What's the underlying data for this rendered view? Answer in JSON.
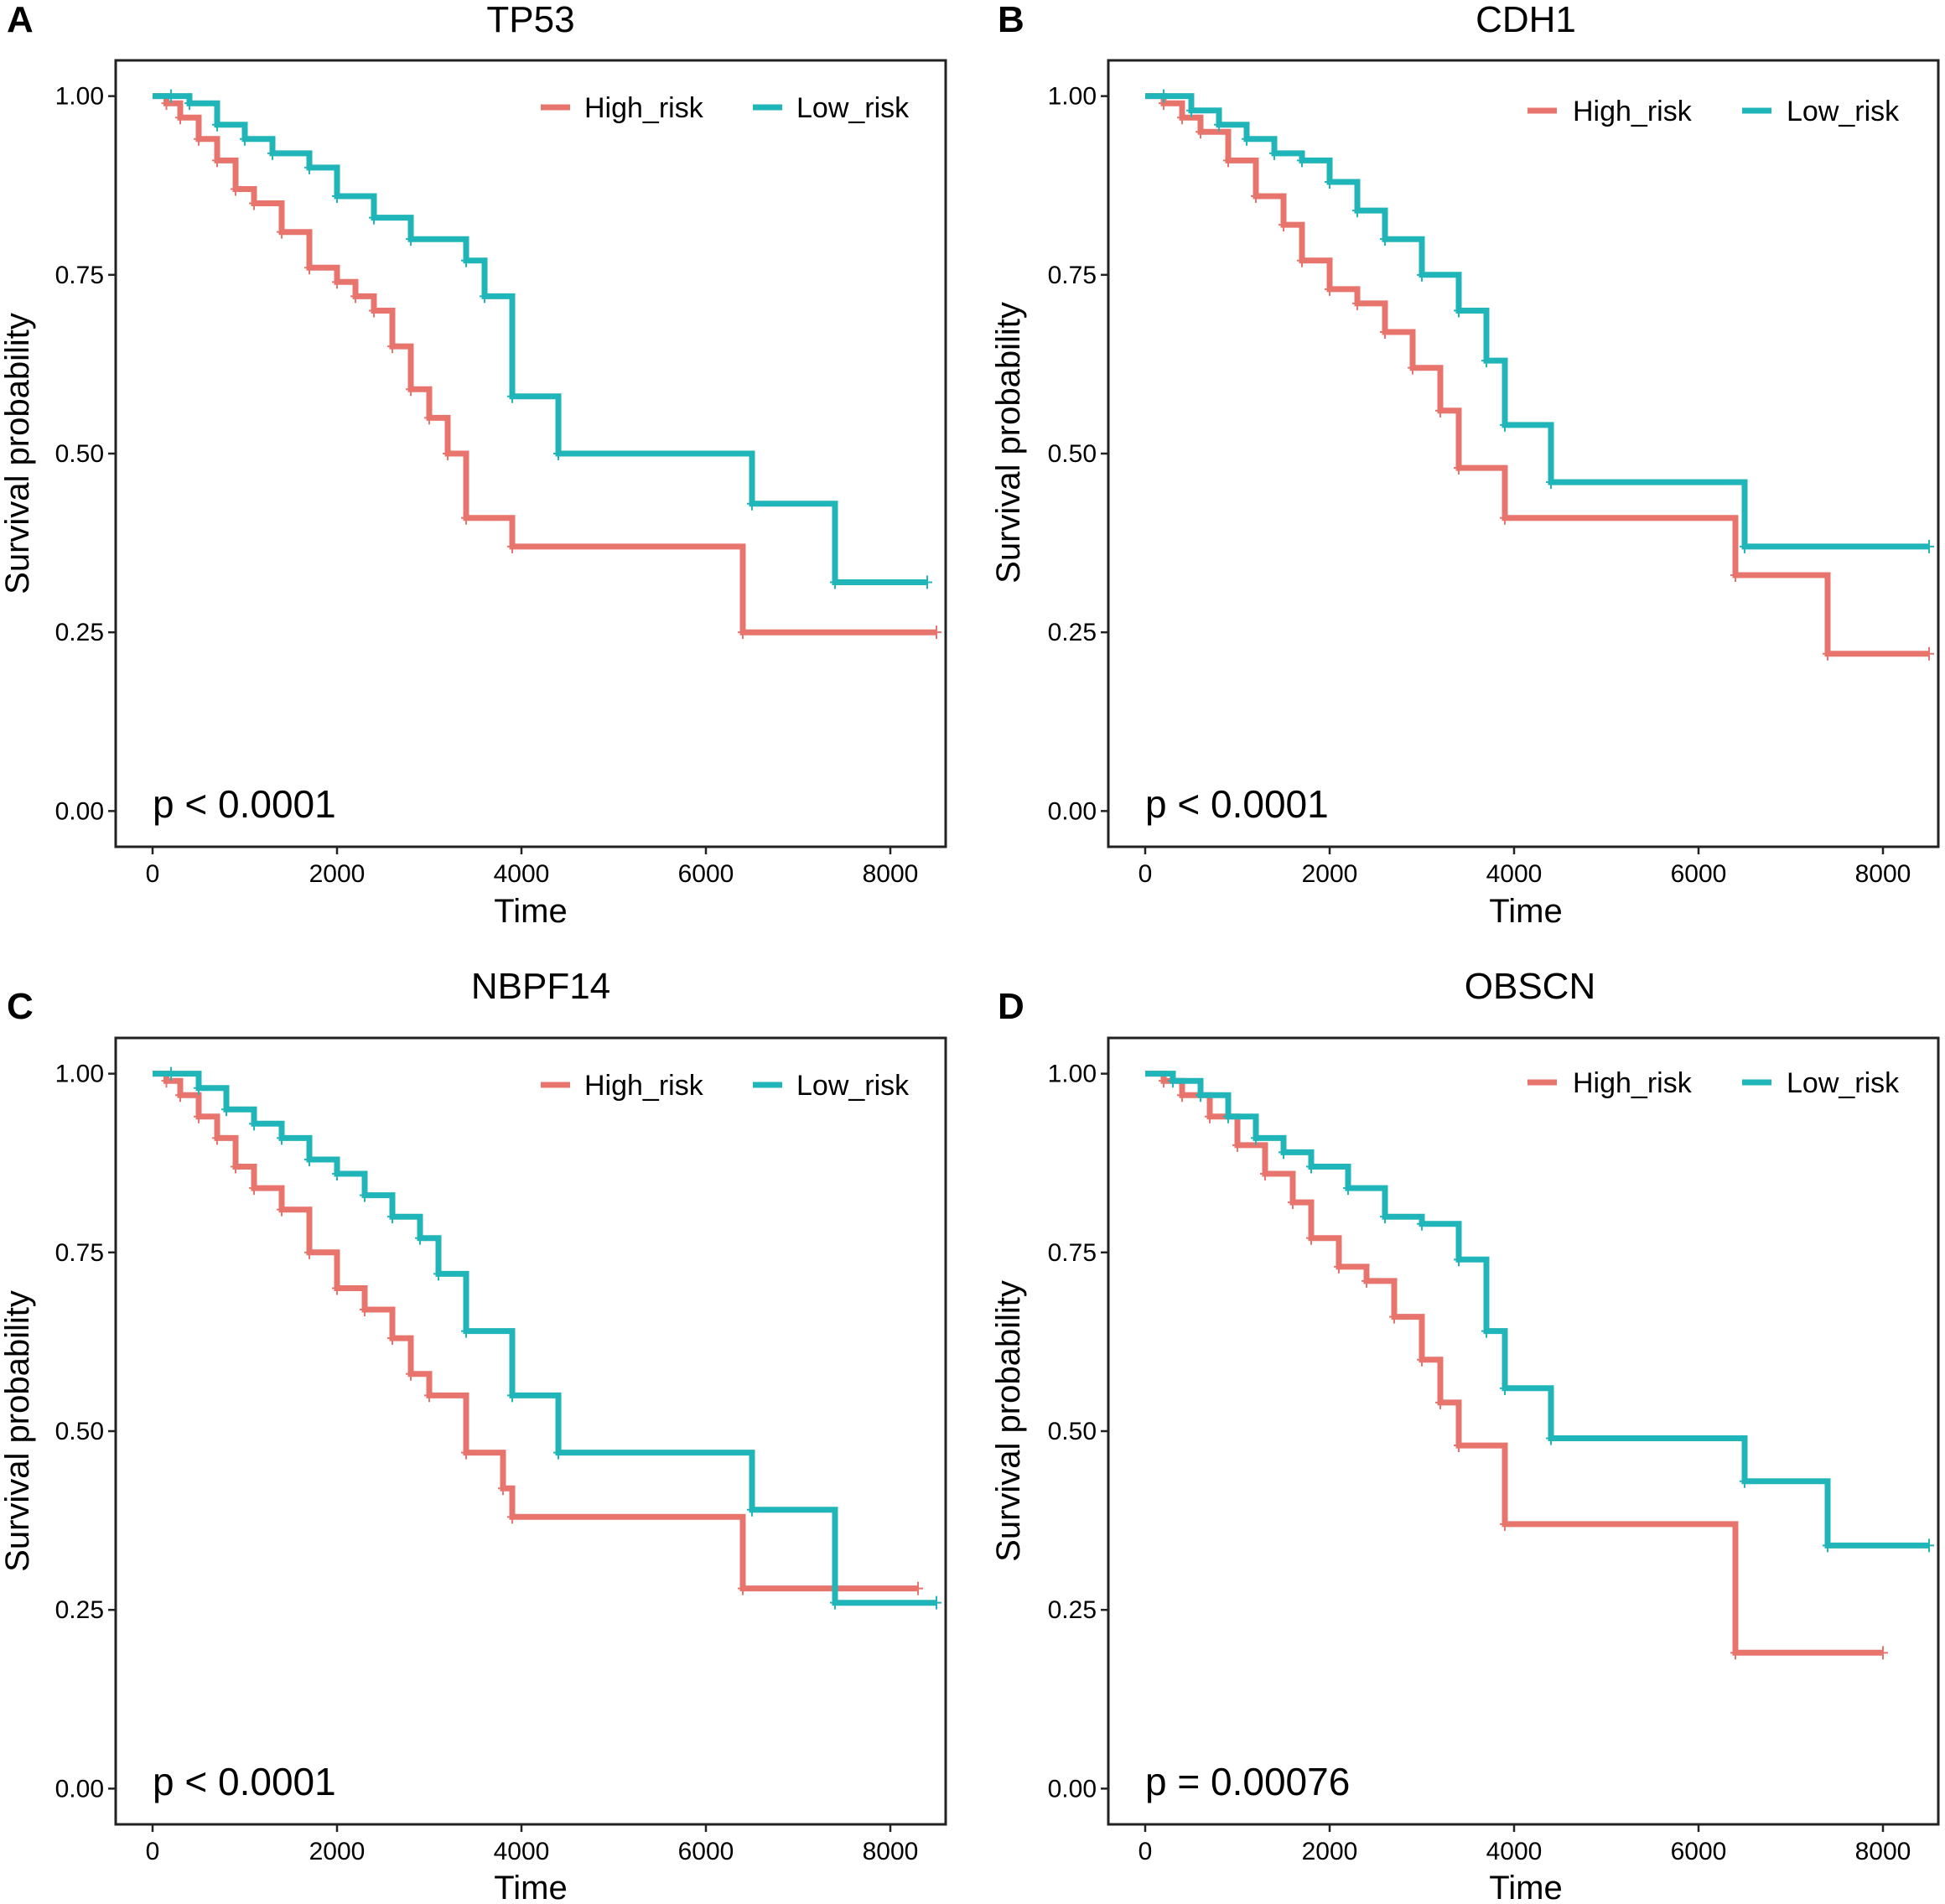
{
  "colors": {
    "high": "#E8756D",
    "low": "#20B5B8"
  },
  "chart_data": [
    {
      "panel": "A",
      "type": "line",
      "title": "TP53",
      "xlabel": "Time",
      "ylabel": "Survival probability",
      "xlim": [
        -400,
        8600
      ],
      "ylim": [
        -0.05,
        1.05
      ],
      "xticks": [
        "0",
        "2000",
        "4000",
        "6000",
        "8000"
      ],
      "yticks": [
        "0.00",
        "0.25",
        "0.50",
        "0.75",
        "1.00"
      ],
      "legend": [
        "High_risk",
        "Low_risk"
      ],
      "pvalue": "p < 0.0001",
      "series": [
        {
          "name": "High_risk",
          "x": [
            0,
            150,
            300,
            500,
            700,
            900,
            1100,
            1400,
            1700,
            2000,
            2200,
            2400,
            2600,
            2800,
            3000,
            3200,
            3400,
            3900,
            6400,
            8500
          ],
          "y": [
            1.0,
            0.99,
            0.97,
            0.94,
            0.91,
            0.87,
            0.85,
            0.81,
            0.76,
            0.74,
            0.72,
            0.7,
            0.65,
            0.59,
            0.55,
            0.5,
            0.41,
            0.37,
            0.25,
            0.25
          ]
        },
        {
          "name": "Low_risk",
          "x": [
            0,
            200,
            400,
            700,
            1000,
            1300,
            1700,
            2000,
            2400,
            2800,
            3400,
            3600,
            3900,
            4400,
            6500,
            7400,
            8400
          ],
          "y": [
            1.0,
            1.0,
            0.99,
            0.96,
            0.94,
            0.92,
            0.9,
            0.86,
            0.83,
            0.8,
            0.77,
            0.72,
            0.58,
            0.5,
            0.43,
            0.32,
            0.32
          ]
        }
      ]
    },
    {
      "panel": "B",
      "type": "line",
      "title": "CDH1",
      "xlabel": "Time",
      "ylabel": "Survival probability",
      "xlim": [
        -400,
        8600
      ],
      "ylim": [
        -0.05,
        1.05
      ],
      "xticks": [
        "0",
        "2000",
        "4000",
        "6000",
        "8000"
      ],
      "yticks": [
        "0.00",
        "0.25",
        "0.50",
        "0.75",
        "1.00"
      ],
      "legend": [
        "High_risk",
        "Low_risk"
      ],
      "pvalue": "p < 0.0001",
      "series": [
        {
          "name": "High_risk",
          "x": [
            0,
            200,
            400,
            600,
            900,
            1200,
            1500,
            1700,
            2000,
            2300,
            2600,
            2900,
            3200,
            3400,
            3900,
            6400,
            7400,
            8500
          ],
          "y": [
            1.0,
            0.99,
            0.97,
            0.95,
            0.91,
            0.86,
            0.82,
            0.77,
            0.73,
            0.71,
            0.67,
            0.62,
            0.56,
            0.48,
            0.41,
            0.33,
            0.22,
            0.22
          ]
        },
        {
          "name": "Low_risk",
          "x": [
            0,
            200,
            500,
            800,
            1100,
            1400,
            1700,
            2000,
            2300,
            2600,
            3000,
            3400,
            3700,
            3900,
            4400,
            6500,
            8500
          ],
          "y": [
            1.0,
            1.0,
            0.98,
            0.96,
            0.94,
            0.92,
            0.91,
            0.88,
            0.84,
            0.8,
            0.75,
            0.7,
            0.63,
            0.54,
            0.46,
            0.37,
            0.37
          ]
        }
      ]
    },
    {
      "panel": "C",
      "type": "line",
      "title": "NBPF14",
      "xlabel": "Time",
      "ylabel": "Survival probability",
      "xlim": [
        -400,
        8600
      ],
      "ylim": [
        -0.05,
        1.05
      ],
      "xticks": [
        "0",
        "2000",
        "4000",
        "6000",
        "8000"
      ],
      "yticks": [
        "0.00",
        "0.25",
        "0.50",
        "0.75",
        "1.00"
      ],
      "legend": [
        "High_risk",
        "Low_risk"
      ],
      "pvalue": "p < 0.0001",
      "series": [
        {
          "name": "High_risk",
          "x": [
            0,
            150,
            300,
            500,
            700,
            900,
            1100,
            1400,
            1700,
            2000,
            2300,
            2600,
            2800,
            3000,
            3400,
            3800,
            3900,
            6400,
            8300
          ],
          "y": [
            1.0,
            0.99,
            0.97,
            0.94,
            0.91,
            0.87,
            0.84,
            0.81,
            0.75,
            0.7,
            0.67,
            0.63,
            0.58,
            0.55,
            0.47,
            0.42,
            0.38,
            0.28,
            0.28
          ]
        },
        {
          "name": "Low_risk",
          "x": [
            0,
            200,
            500,
            800,
            1100,
            1400,
            1700,
            2000,
            2300,
            2600,
            2900,
            3100,
            3400,
            3900,
            4400,
            6500,
            7400,
            8500
          ],
          "y": [
            1.0,
            1.0,
            0.98,
            0.95,
            0.93,
            0.91,
            0.88,
            0.86,
            0.83,
            0.8,
            0.77,
            0.72,
            0.64,
            0.55,
            0.47,
            0.39,
            0.26,
            0.26
          ]
        }
      ]
    },
    {
      "panel": "D",
      "type": "line",
      "title": "OBSCN",
      "xlabel": "Time",
      "ylabel": "Survival probability",
      "xlim": [
        -400,
        8600
      ],
      "ylim": [
        -0.05,
        1.05
      ],
      "xticks": [
        "0",
        "2000",
        "4000",
        "6000",
        "8000"
      ],
      "yticks": [
        "0.00",
        "0.25",
        "0.50",
        "0.75",
        "1.00"
      ],
      "legend": [
        "High_risk",
        "Low_risk"
      ],
      "pvalue": "p = 0.00076",
      "series": [
        {
          "name": "High_risk",
          "x": [
            0,
            200,
            400,
            700,
            1000,
            1300,
            1600,
            1800,
            2100,
            2400,
            2700,
            3000,
            3200,
            3400,
            3900,
            6400,
            8000
          ],
          "y": [
            1.0,
            0.99,
            0.97,
            0.94,
            0.9,
            0.86,
            0.82,
            0.77,
            0.73,
            0.71,
            0.66,
            0.6,
            0.54,
            0.48,
            0.37,
            0.19,
            0.19
          ]
        },
        {
          "name": "Low_risk",
          "x": [
            0,
            300,
            600,
            900,
            1200,
            1500,
            1800,
            2200,
            2600,
            3000,
            3400,
            3700,
            3900,
            4400,
            6500,
            7400,
            8500
          ],
          "y": [
            1.0,
            0.99,
            0.97,
            0.94,
            0.91,
            0.89,
            0.87,
            0.84,
            0.8,
            0.79,
            0.74,
            0.64,
            0.56,
            0.49,
            0.43,
            0.34,
            0.34
          ]
        }
      ]
    }
  ]
}
